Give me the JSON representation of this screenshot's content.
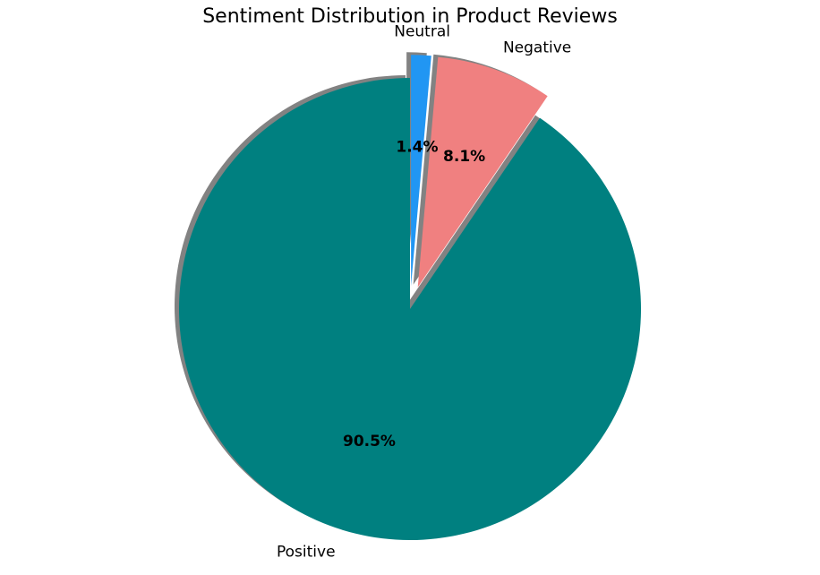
{
  "chart_data": {
    "type": "pie",
    "title": "Sentiment Distribution in Product Reviews",
    "start_angle_deg": 90,
    "direction": "counterclockwise",
    "shadow": true,
    "slices": [
      {
        "label": "Positive",
        "value": 90.5,
        "pct_label": "90.5%",
        "color": "#008080",
        "explode": 0
      },
      {
        "label": "Negative",
        "value": 8.1,
        "pct_label": "8.1%",
        "color": "#f08080",
        "explode": 0.1
      },
      {
        "label": "Neutral",
        "value": 1.4,
        "pct_label": "1.4%",
        "color": "#2196f3",
        "explode": 0.1
      }
    ]
  }
}
